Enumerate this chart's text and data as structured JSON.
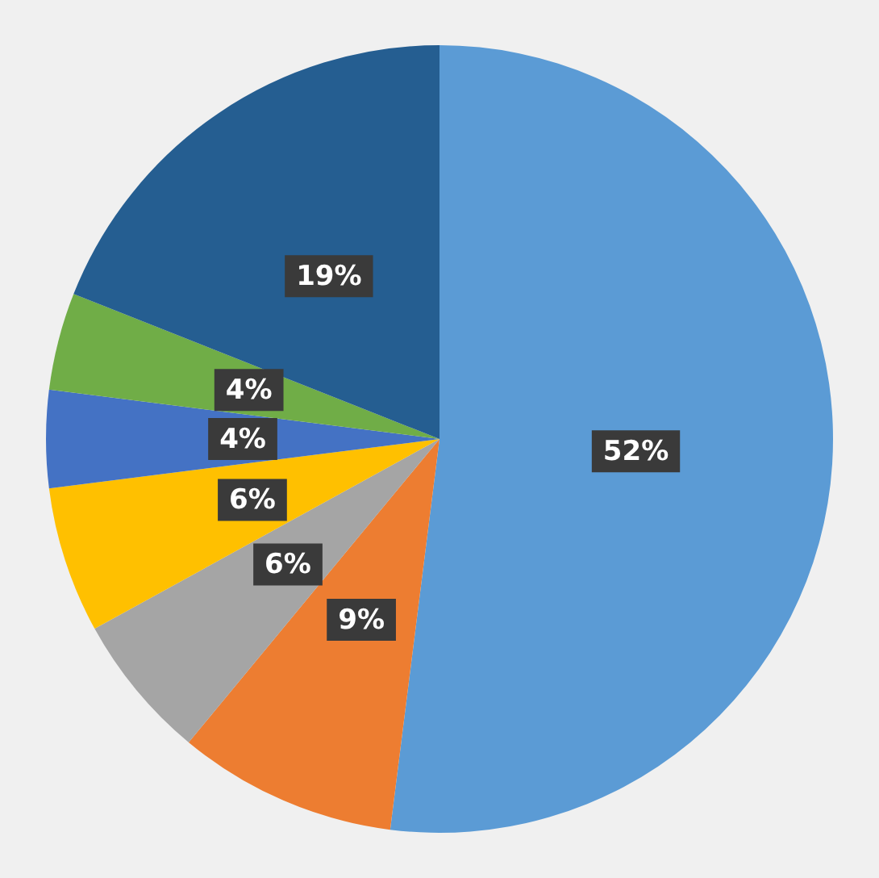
{
  "chart_data": {
    "type": "pie",
    "categories": [
      null,
      null,
      null,
      null,
      null,
      null,
      null
    ],
    "values": [
      52,
      9,
      6,
      6,
      4,
      4,
      19
    ],
    "colors": [
      "#5b9bd5",
      "#ed7d31",
      "#a5a5a5",
      "#ffc000",
      "#4472c4",
      "#70ad47",
      "#255e91"
    ],
    "value_labels": [
      "52%",
      "9%",
      "6%",
      "6%",
      "4%",
      "4%",
      "19%"
    ],
    "legend": false
  }
}
